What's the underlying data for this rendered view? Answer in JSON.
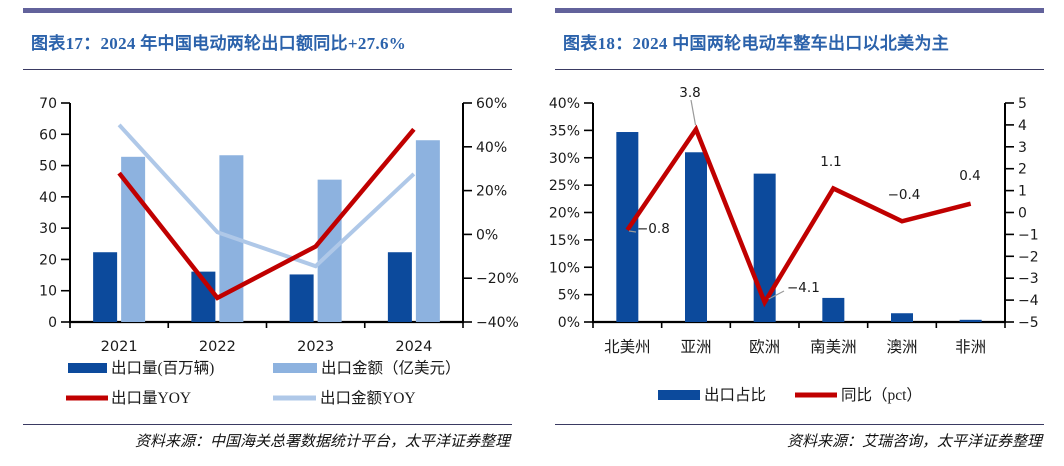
{
  "page": {
    "background": "#ffffff",
    "accent_rule_color": "#62629B",
    "thin_rule_color": "#3A3A62",
    "title_color": "#2B62AB"
  },
  "chart_data": [
    {
      "type": "bar+line",
      "title": "图表17：2024 年中国电动两轮出口额同比+27.6%",
      "source": "资料来源：中国海关总署数据统计平台，太平洋证券整理",
      "categories": [
        "2021",
        "2022",
        "2023",
        "2024"
      ],
      "left_axis": {
        "min": 0,
        "max": 70,
        "step": 10,
        "suffix": ""
      },
      "right_axis": {
        "min": -40,
        "max": 60,
        "step": 20,
        "suffix": "%"
      },
      "bar_series": [
        {
          "name": "出口量(百万辆)",
          "color": "#0C4A9C",
          "axis": "left",
          "values": [
            22.3,
            16.1,
            15.2,
            22.3
          ]
        },
        {
          "name": "出口金额（亿美元）",
          "color": "#8DB2DF",
          "axis": "left",
          "values": [
            52.8,
            53.3,
            45.5,
            58.1
          ]
        }
      ],
      "line_series": [
        {
          "name": "出口量YOY",
          "color": "#C00000",
          "axis": "right",
          "values": [
            28,
            -29,
            -5.5,
            48
          ]
        },
        {
          "name": "出口金额YOY",
          "color": "#AFC8E8",
          "axis": "right",
          "values": [
            50,
            1,
            -14.5,
            27.6
          ]
        }
      ],
      "legend_position": "bottom",
      "grid": false
    },
    {
      "type": "bar+line",
      "title": "图表18：2024 中国两轮电动车整车出口以北美为主",
      "source": "资料来源：艾瑞咨询，太平洋证券整理",
      "categories": [
        "北美州",
        "亚洲",
        "欧洲",
        "南美洲",
        "澳洲",
        "非洲"
      ],
      "left_axis": {
        "min": 0,
        "max": 40,
        "step": 5,
        "suffix": "%"
      },
      "right_axis": {
        "min": -5,
        "max": 5,
        "step": 1,
        "suffix": ""
      },
      "bar_series": [
        {
          "name": "出口占比",
          "color": "#0C4A9C",
          "axis": "left",
          "values": [
            34.7,
            31.0,
            27.1,
            4.4,
            1.6,
            0.4
          ]
        }
      ],
      "line_series": [
        {
          "name": "同比（pct）",
          "color": "#C00000",
          "axis": "right",
          "values": [
            -0.8,
            3.8,
            -4.1,
            1.1,
            -0.4,
            0.4
          ],
          "point_labels": [
            "−0.8",
            "3.8",
            "−4.1",
            "1.1",
            "−0.4",
            "0.4"
          ]
        }
      ],
      "legend_position": "bottom",
      "grid": false
    }
  ]
}
